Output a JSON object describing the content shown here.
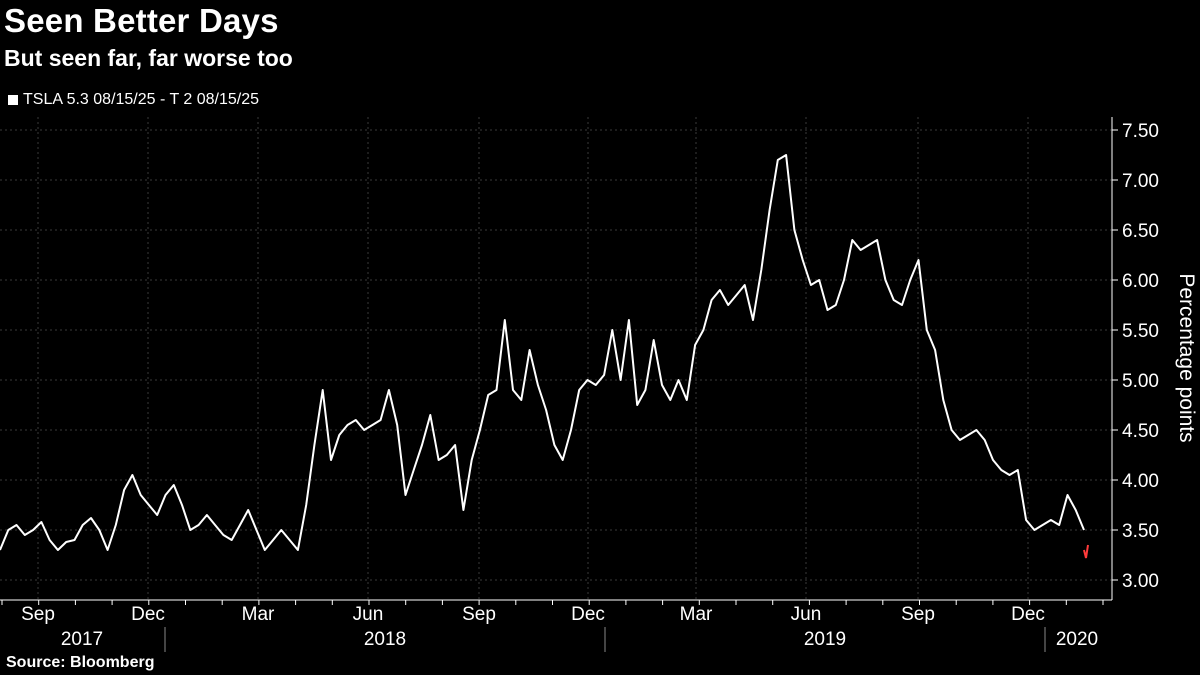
{
  "title": "Seen Better Days",
  "subtitle": "But seen far, far worse too",
  "legend_label": "TSLA 5.3 08/15/25 - T 2 08/15/25",
  "source": "Source: Bloomberg",
  "colors": {
    "background": "#000000",
    "line": "#ffffff",
    "grid": "#3a3a3a",
    "last_segment": "#ff3b3b"
  },
  "chart_data": {
    "type": "line",
    "ylabel": "Percentage points",
    "ylim": [
      3.0,
      7.5
    ],
    "y_ticks": [
      "7.50",
      "7.00",
      "6.50",
      "6.00",
      "5.50",
      "5.00",
      "4.50",
      "4.00",
      "3.50",
      "3.00"
    ],
    "month_ticks": [
      "Sep",
      "Dec",
      "Mar",
      "Jun",
      "Sep",
      "Dec",
      "Mar",
      "Jun",
      "Sep",
      "Dec"
    ],
    "year_labels": [
      "2017",
      "2018",
      "2019",
      "2020"
    ],
    "grid": true,
    "series": [
      {
        "values": [
          3.3,
          3.5,
          3.55,
          3.45,
          3.5,
          3.58,
          3.4,
          3.3,
          3.38,
          3.4,
          3.55,
          3.62,
          3.5,
          3.3,
          3.55,
          3.9,
          4.05,
          3.85,
          3.75,
          3.65,
          3.85,
          3.95,
          3.75,
          3.5,
          3.55,
          3.65,
          3.55,
          3.45,
          3.4,
          3.55,
          3.7,
          3.5,
          3.3,
          3.4,
          3.5,
          3.4,
          3.3,
          3.75,
          4.35,
          4.9,
          4.2,
          4.45,
          4.55,
          4.6,
          4.5,
          4.55,
          4.6,
          4.9,
          4.55,
          3.85,
          4.1,
          4.35,
          4.65,
          4.2,
          4.25,
          4.35,
          3.7,
          4.2,
          4.5,
          4.85,
          4.9,
          5.6,
          4.9,
          4.8,
          5.3,
          4.95,
          4.7,
          4.35,
          4.2,
          4.5,
          4.9,
          5.0,
          4.95,
          5.05,
          5.5,
          5.0,
          5.6,
          4.75,
          4.9,
          5.4,
          4.95,
          4.8,
          5.0,
          4.8,
          5.35,
          5.5,
          5.8,
          5.9,
          5.75,
          5.85,
          5.95,
          5.6,
          6.1,
          6.7,
          7.2,
          7.25,
          6.5,
          6.2,
          5.95,
          6.0,
          5.7,
          5.75,
          6.0,
          6.4,
          6.3,
          6.35,
          6.4,
          6.0,
          5.8,
          5.75,
          6.0,
          6.2,
          5.5,
          5.3,
          4.8,
          4.5,
          4.4,
          4.45,
          4.5,
          4.4,
          4.2,
          4.1,
          4.05,
          4.1,
          3.6,
          3.5,
          3.55,
          3.6,
          3.55,
          3.85,
          3.7,
          3.5
        ],
        "last_values": [
          3.3,
          3.22,
          3.35
        ]
      }
    ]
  }
}
